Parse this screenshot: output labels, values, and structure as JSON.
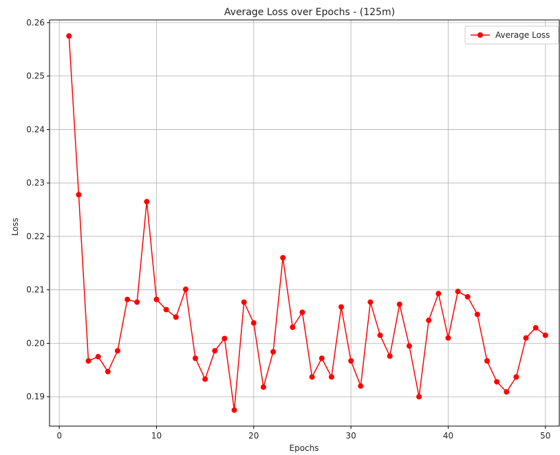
{
  "chart_data": {
    "type": "line",
    "title": "Average Loss over Epochs - (125m)",
    "xlabel": "Epochs",
    "ylabel": "Loss",
    "xlim": [
      -1,
      51.5
    ],
    "ylim": [
      0.1845,
      0.2605
    ],
    "xticks": [
      0,
      10,
      20,
      30,
      40,
      50
    ],
    "yticks": [
      0.19,
      0.2,
      0.21,
      0.22,
      0.23,
      0.24,
      0.25,
      0.26
    ],
    "xtick_labels": [
      "0",
      "10",
      "20",
      "30",
      "40",
      "50"
    ],
    "ytick_labels": [
      "0.19",
      "0.20",
      "0.21",
      "0.22",
      "0.23",
      "0.24",
      "0.25",
      "0.26"
    ],
    "grid": true,
    "legend_position": "top-right",
    "series": [
      {
        "name": "Average Loss",
        "color": "#ff0000",
        "marker": "circle",
        "x": [
          1,
          2,
          3,
          4,
          5,
          6,
          7,
          8,
          9,
          10,
          11,
          12,
          13,
          14,
          15,
          16,
          17,
          18,
          19,
          20,
          21,
          22,
          23,
          24,
          25,
          26,
          27,
          28,
          29,
          30,
          31,
          32,
          33,
          34,
          35,
          36,
          37,
          38,
          39,
          40,
          41,
          42,
          43,
          44,
          45,
          46,
          47,
          48,
          49,
          50
        ],
        "values": [
          0.2575,
          0.2278,
          0.1967,
          0.1975,
          0.1947,
          0.1986,
          0.2082,
          0.2077,
          0.2265,
          0.2082,
          0.2063,
          0.2049,
          0.2101,
          0.1972,
          0.1933,
          0.1986,
          0.2009,
          0.1875,
          0.2077,
          0.2038,
          0.1918,
          0.1984,
          0.216,
          0.203,
          0.2058,
          0.1937,
          0.1972,
          0.1937,
          0.2068,
          0.1967,
          0.192,
          0.2077,
          0.2015,
          0.1976,
          0.2073,
          0.1995,
          0.19,
          0.2043,
          0.2093,
          0.201,
          0.2097,
          0.2087,
          0.2054,
          0.1967,
          0.1928,
          0.1909,
          0.1937,
          0.201,
          0.2029,
          0.2015
        ]
      }
    ]
  }
}
